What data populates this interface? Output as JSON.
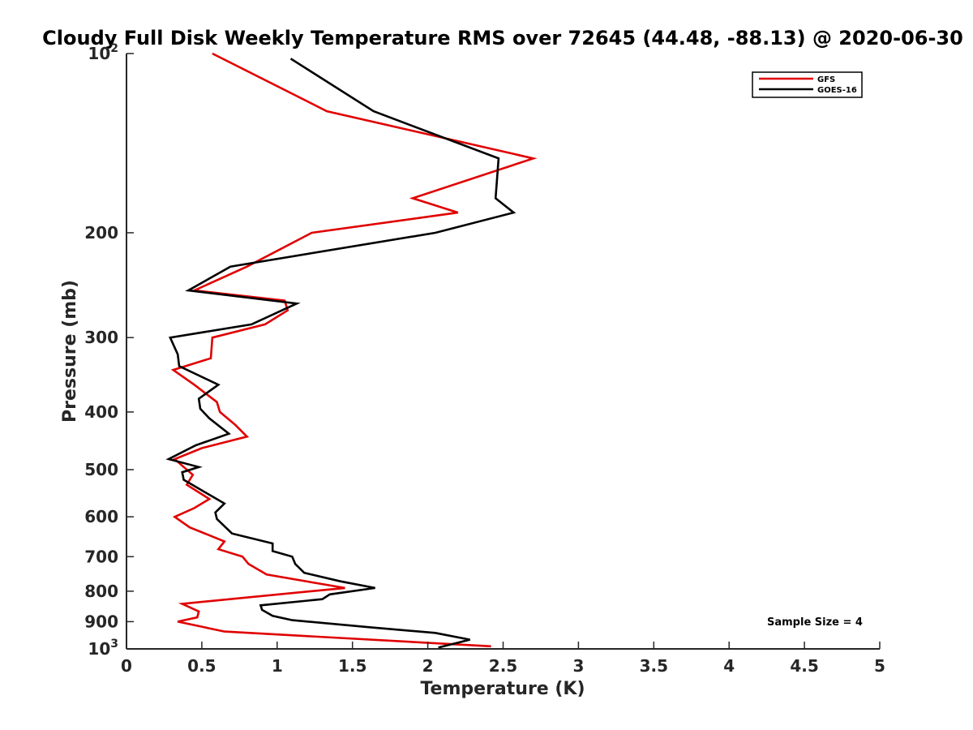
{
  "chart_data": {
    "type": "line",
    "title": "Cloudy Full Disk Weekly Temperature RMS over 72645 (44.48, -88.13) @ 2020-06-30",
    "xlabel": "Temperature (K)",
    "ylabel": "Pressure (mb)",
    "xlim": [
      0,
      5
    ],
    "ylim": [
      100,
      1000
    ],
    "yscale": "log",
    "y_reversed": true,
    "x_ticks": [
      "0",
      "0.5",
      "1",
      "1.5",
      "2",
      "2.5",
      "3",
      "3.5",
      "4",
      "4.5",
      "5"
    ],
    "x_tick_values": [
      0,
      0.5,
      1,
      1.5,
      2,
      2.5,
      3,
      3.5,
      4,
      4.5,
      5
    ],
    "y_ticks": [
      {
        "value": 100,
        "base": "10",
        "exp": "2"
      },
      {
        "value": 200,
        "label": "200"
      },
      {
        "value": 300,
        "label": "300"
      },
      {
        "value": 400,
        "label": "400"
      },
      {
        "value": 500,
        "label": "500"
      },
      {
        "value": 600,
        "label": "600"
      },
      {
        "value": 700,
        "label": "700"
      },
      {
        "value": 800,
        "label": "800"
      },
      {
        "value": 900,
        "label": "900"
      },
      {
        "value": 1000,
        "base": "10",
        "exp": "3"
      }
    ],
    "grid": false,
    "legend_position": "top-right",
    "annotation": "Sample Size = 4",
    "series": [
      {
        "name": "GFS",
        "color": "#e00000",
        "points": [
          [
            0.57,
            100
          ],
          [
            1.33,
            125
          ],
          [
            2.7,
            150
          ],
          [
            1.9,
            175
          ],
          [
            2.2,
            185
          ],
          [
            1.23,
            200
          ],
          [
            0.8,
            228
          ],
          [
            0.45,
            250
          ],
          [
            1.05,
            260
          ],
          [
            1.07,
            270
          ],
          [
            0.92,
            285
          ],
          [
            0.57,
            300
          ],
          [
            0.56,
            325
          ],
          [
            0.31,
            340
          ],
          [
            0.45,
            360
          ],
          [
            0.6,
            385
          ],
          [
            0.62,
            400
          ],
          [
            0.72,
            420
          ],
          [
            0.8,
            440
          ],
          [
            0.5,
            460
          ],
          [
            0.32,
            480
          ],
          [
            0.38,
            495
          ],
          [
            0.44,
            510
          ],
          [
            0.4,
            530
          ],
          [
            0.55,
            560
          ],
          [
            0.45,
            580
          ],
          [
            0.32,
            600
          ],
          [
            0.42,
            625
          ],
          [
            0.65,
            660
          ],
          [
            0.61,
            680
          ],
          [
            0.77,
            700
          ],
          [
            0.81,
            720
          ],
          [
            0.93,
            750
          ],
          [
            1.45,
            790
          ],
          [
            0.37,
            840
          ],
          [
            0.48,
            865
          ],
          [
            0.47,
            885
          ],
          [
            0.34,
            900
          ],
          [
            0.65,
            935
          ],
          [
            2.42,
            990
          ]
        ]
      },
      {
        "name": "GOES-16",
        "color": "#000000",
        "points": [
          [
            1.09,
            102
          ],
          [
            1.64,
            125
          ],
          [
            2.47,
            150
          ],
          [
            2.45,
            175
          ],
          [
            2.57,
            185
          ],
          [
            2.05,
            200
          ],
          [
            0.69,
            228
          ],
          [
            0.41,
            250
          ],
          [
            1.13,
            263
          ],
          [
            0.83,
            285
          ],
          [
            0.29,
            300
          ],
          [
            0.34,
            320
          ],
          [
            0.35,
            335
          ],
          [
            0.61,
            360
          ],
          [
            0.48,
            380
          ],
          [
            0.49,
            395
          ],
          [
            0.55,
            410
          ],
          [
            0.68,
            435
          ],
          [
            0.46,
            455
          ],
          [
            0.28,
            480
          ],
          [
            0.48,
            495
          ],
          [
            0.37,
            505
          ],
          [
            0.38,
            520
          ],
          [
            0.65,
            570
          ],
          [
            0.59,
            590
          ],
          [
            0.6,
            605
          ],
          [
            0.7,
            640
          ],
          [
            0.97,
            665
          ],
          [
            0.97,
            685
          ],
          [
            1.1,
            700
          ],
          [
            1.12,
            720
          ],
          [
            1.18,
            745
          ],
          [
            1.42,
            770
          ],
          [
            1.65,
            790
          ],
          [
            1.35,
            810
          ],
          [
            1.3,
            825
          ],
          [
            0.89,
            845
          ],
          [
            0.9,
            860
          ],
          [
            0.97,
            880
          ],
          [
            1.1,
            895
          ],
          [
            1.62,
            920
          ],
          [
            2.05,
            940
          ],
          [
            2.28,
            965
          ],
          [
            2.07,
            995
          ]
        ]
      }
    ]
  }
}
